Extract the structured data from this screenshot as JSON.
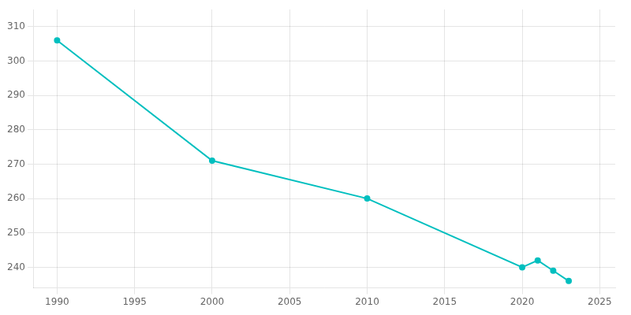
{
  "chart_data": {
    "type": "line",
    "x": [
      1990,
      2000,
      2010,
      2020,
      2021,
      2022,
      2023
    ],
    "values": [
      306,
      271,
      260,
      240,
      242,
      239,
      236
    ],
    "color": "#00BFBF",
    "marker": "circle",
    "xlim": [
      1988.5,
      2026
    ],
    "ylim": [
      234,
      315
    ],
    "xticks": [
      1990,
      1995,
      2000,
      2005,
      2010,
      2015,
      2020,
      2025
    ],
    "yticks": [
      240,
      250,
      260,
      270,
      280,
      290,
      300,
      310
    ],
    "grid": true
  }
}
